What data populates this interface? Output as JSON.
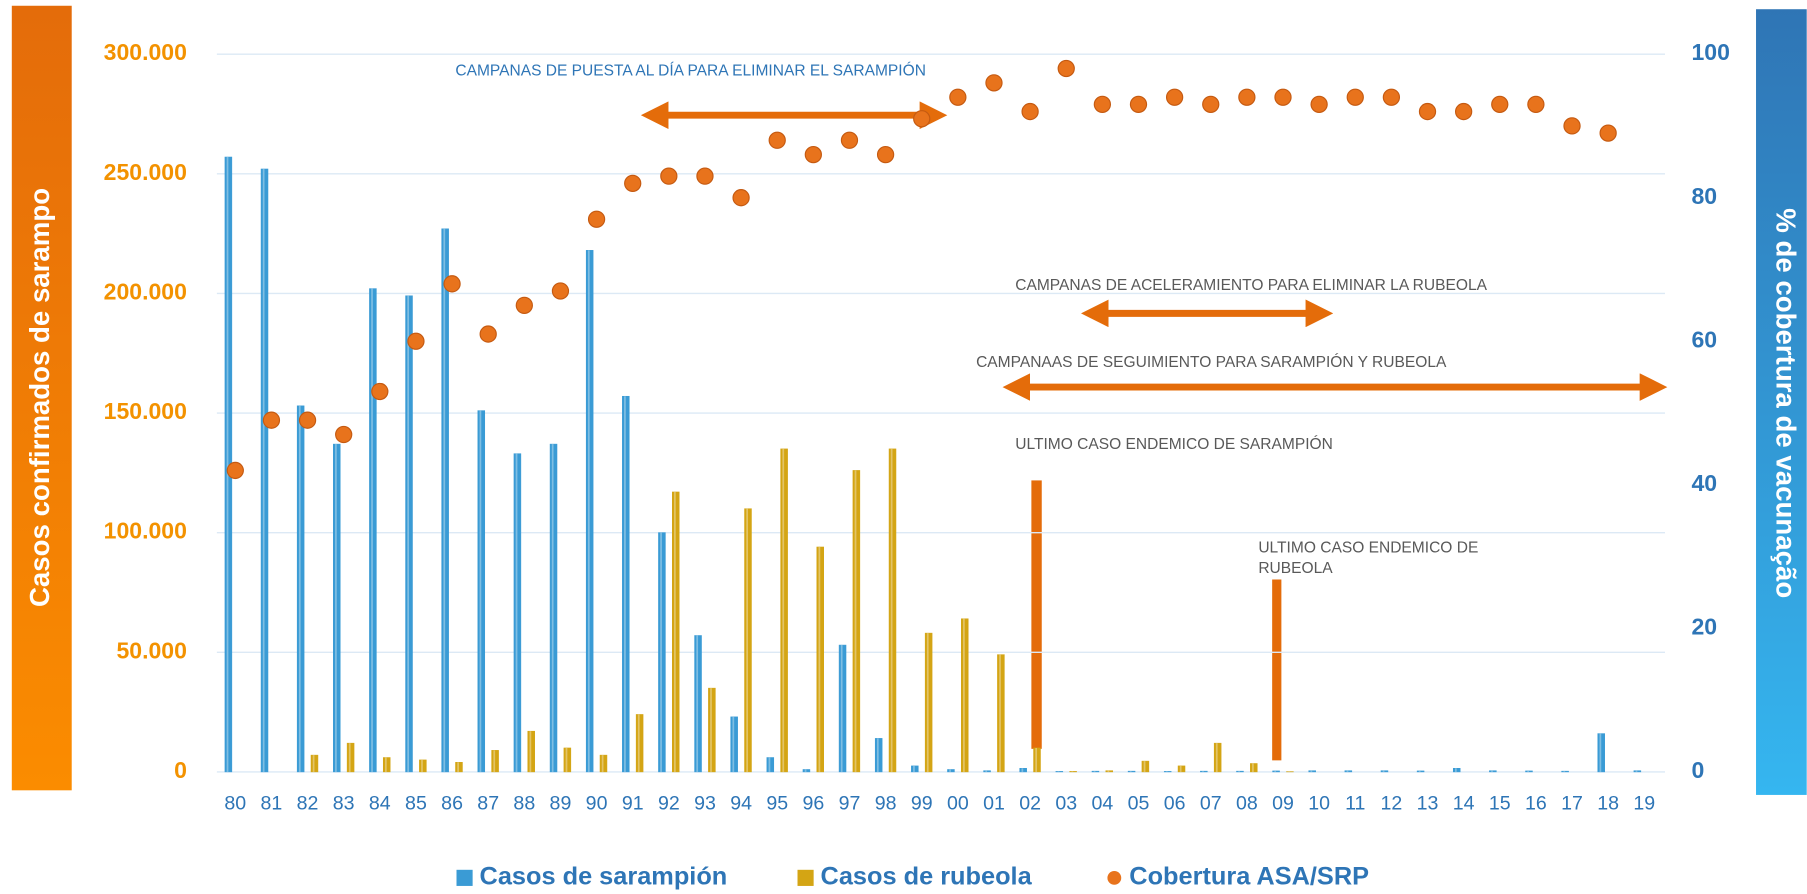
{
  "chart_data": {
    "type": "bar",
    "categories": [
      "80",
      "81",
      "82",
      "83",
      "84",
      "85",
      "86",
      "87",
      "88",
      "89",
      "90",
      "91",
      "92",
      "93",
      "94",
      "95",
      "96",
      "97",
      "98",
      "99",
      "00",
      "01",
      "02",
      "03",
      "04",
      "05",
      "06",
      "07",
      "08",
      "09",
      "10",
      "11",
      "12",
      "13",
      "14",
      "15",
      "16",
      "17",
      "18",
      "19"
    ],
    "series": [
      {
        "name": "Casos de sarampión",
        "color": "#3a9bd5",
        "values": [
          257000,
          252000,
          153000,
          137000,
          202000,
          199000,
          227000,
          151000,
          133000,
          137000,
          218000,
          157000,
          100000,
          57000,
          23000,
          6000,
          1000,
          53000,
          14000,
          2500,
          1000,
          500,
          1500,
          200,
          300,
          300,
          200,
          300,
          300,
          400,
          500,
          500,
          500,
          400,
          1500,
          500,
          400,
          300,
          16000,
          500
        ]
      },
      {
        "name": "Casos de rubeola",
        "color": "#d4a514",
        "values": [
          0,
          0,
          7000,
          12000,
          6000,
          5000,
          4000,
          9000,
          17000,
          10000,
          7000,
          24000,
          117000,
          35000,
          110000,
          135000,
          94000,
          126000,
          135000,
          58000,
          64000,
          49000,
          10000,
          200,
          500,
          4500,
          2500,
          12000,
          3500,
          100,
          0,
          0,
          0,
          0,
          0,
          0,
          0,
          0,
          0,
          0
        ]
      },
      {
        "name": "Cobertura ASA/SRP",
        "color": "#e8731c",
        "type": "scatter",
        "axis": "y2",
        "values": [
          42,
          49,
          49,
          47,
          53,
          60,
          68,
          61,
          65,
          67,
          77,
          82,
          83,
          83,
          80,
          88,
          86,
          88,
          86,
          91,
          94,
          96,
          92,
          98,
          93,
          93,
          94,
          93,
          94,
          94,
          93,
          94,
          94,
          92,
          92,
          93,
          93,
          90,
          89,
          null
        ]
      }
    ],
    "ylabel": "Casos confirmados de sarampo",
    "y2label": "% de cobertura de vacunação",
    "ylim": [
      0,
      300000
    ],
    "yticks": [
      0,
      {
        "value": 50000,
        "label": "50.000"
      },
      {
        "value": 100000,
        "label": "100.000"
      },
      {
        "value": 150000,
        "label": "150.000"
      },
      {
        "value": 200000,
        "label": "200.000"
      },
      {
        "value": 250000,
        "label": "250.000"
      },
      {
        "value": 300000,
        "label": "300.000"
      }
    ],
    "y2lim": [
      0,
      100
    ],
    "y2ticks": [
      0,
      20,
      40,
      60,
      80,
      100
    ],
    "grid": true,
    "legend": "bottom",
    "annotations": [
      {
        "text": "CAMPANAS DE PUESTA AL DÍA PARA ELIMINAR EL SARAMPIÓN"
      },
      {
        "text": "CAMPANAS DE ACELERAMIENTO PARA ELIMINAR LA RUBEOLA"
      },
      {
        "text": "CAMPANAAS DE SEGUIMIENTO PARA SARAMPIÓN Y RUBEOLA"
      },
      {
        "text": "ULTIMO CASO ENDEMICO DE SARAMPIÓN"
      },
      {
        "lines": [
          "ULTIMO CASO ENDEMICO DE",
          "RUBEOLA"
        ]
      }
    ]
  }
}
